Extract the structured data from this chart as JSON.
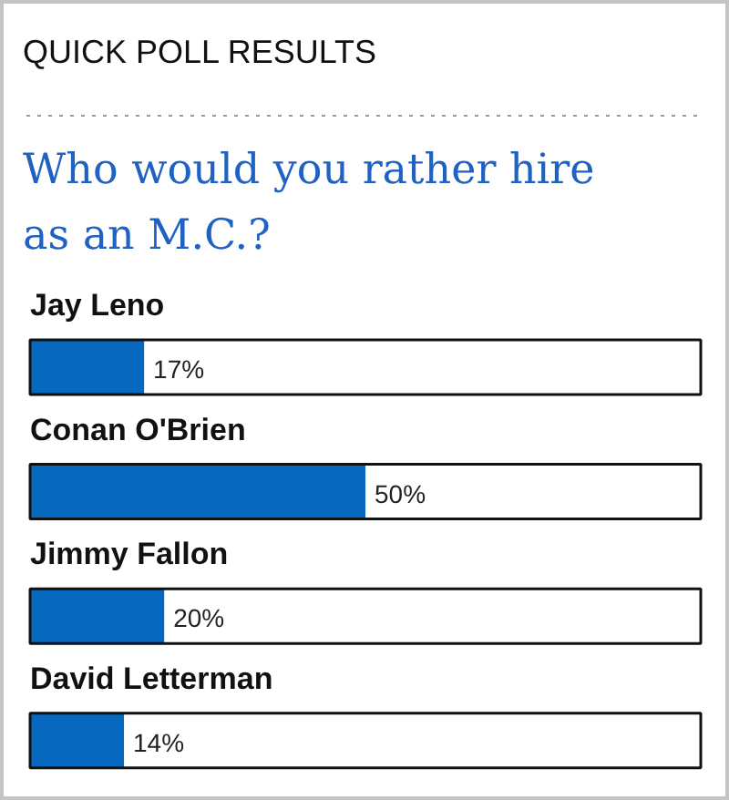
{
  "chart_data": {
    "type": "bar",
    "orientation": "horizontal",
    "title": "QUICK POLL RESULTS",
    "subtitle": "Who would you rather hire as an M.C.?",
    "categories": [
      "Jay Leno",
      "Conan O'Brien",
      "Jimmy Fallon",
      "David Letterman"
    ],
    "values": [
      17,
      50,
      20,
      14
    ],
    "color": "#0668be",
    "value_labels": [
      "17%",
      "50%",
      "20%",
      "14%"
    ],
    "xlim": [
      0,
      100
    ],
    "tick_labels": false
  }
}
